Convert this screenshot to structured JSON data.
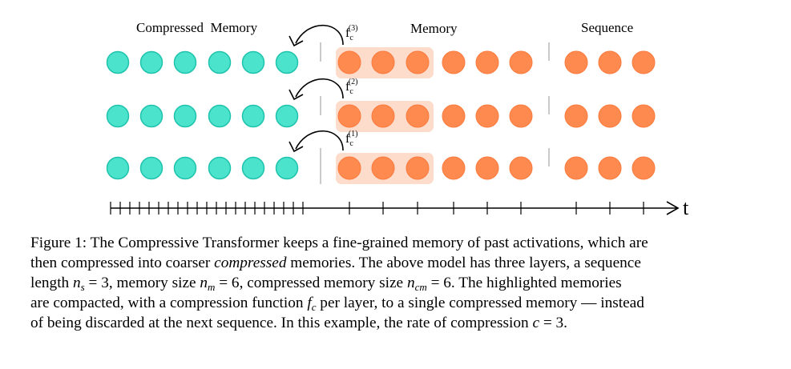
{
  "figure": {
    "labels": {
      "compressed_memory": "Compressed  Memory",
      "memory": "Memory",
      "sequence": "Sequence",
      "time_axis": "t"
    },
    "compression_functions": [
      {
        "base": "f",
        "sub": "c",
        "sup": "(3)"
      },
      {
        "base": "f",
        "sub": "c",
        "sup": "(2)"
      },
      {
        "base": "f",
        "sub": "c",
        "sup": "(1)"
      }
    ],
    "layers": 3,
    "compressed_memory_count": 6,
    "memory_count": 6,
    "sequence_count": 3,
    "highlighted_memory_count": 3,
    "colors": {
      "compressed": "#4be3cb",
      "compressed_stroke": "#1fc3ad",
      "memory": "#ff8a50",
      "memory_stroke": "#fb7a3c",
      "highlight": "#fddccb",
      "separator": "#b8b8b8"
    }
  },
  "caption": {
    "l1": "Figure 1: The Compressive Transformer keeps a fine-grained memory of past activations, which are",
    "l2a": "then compressed into coarser ",
    "l2b": "compressed",
    "l2c": " memories. The above model has three layers, a sequence",
    "l3a": "length ",
    "l3n": "n",
    "l3s": "s",
    "l3b": " = 3, memory size ",
    "l3m": "n",
    "l3ms": "m",
    "l3c": " = 6, compressed memory size ",
    "l3cm": "n",
    "l3cms": "cm",
    "l3d": " = 6. The highlighted memories",
    "l4a": "are compacted, with a compression function ",
    "l4f": "f",
    "l4fs": "c",
    "l4b": " per layer, to a single compressed memory — instead",
    "l5a": "of being discarded at the next sequence. In this example, the rate of compression ",
    "l5c": "c",
    "l5b": " = 3."
  }
}
